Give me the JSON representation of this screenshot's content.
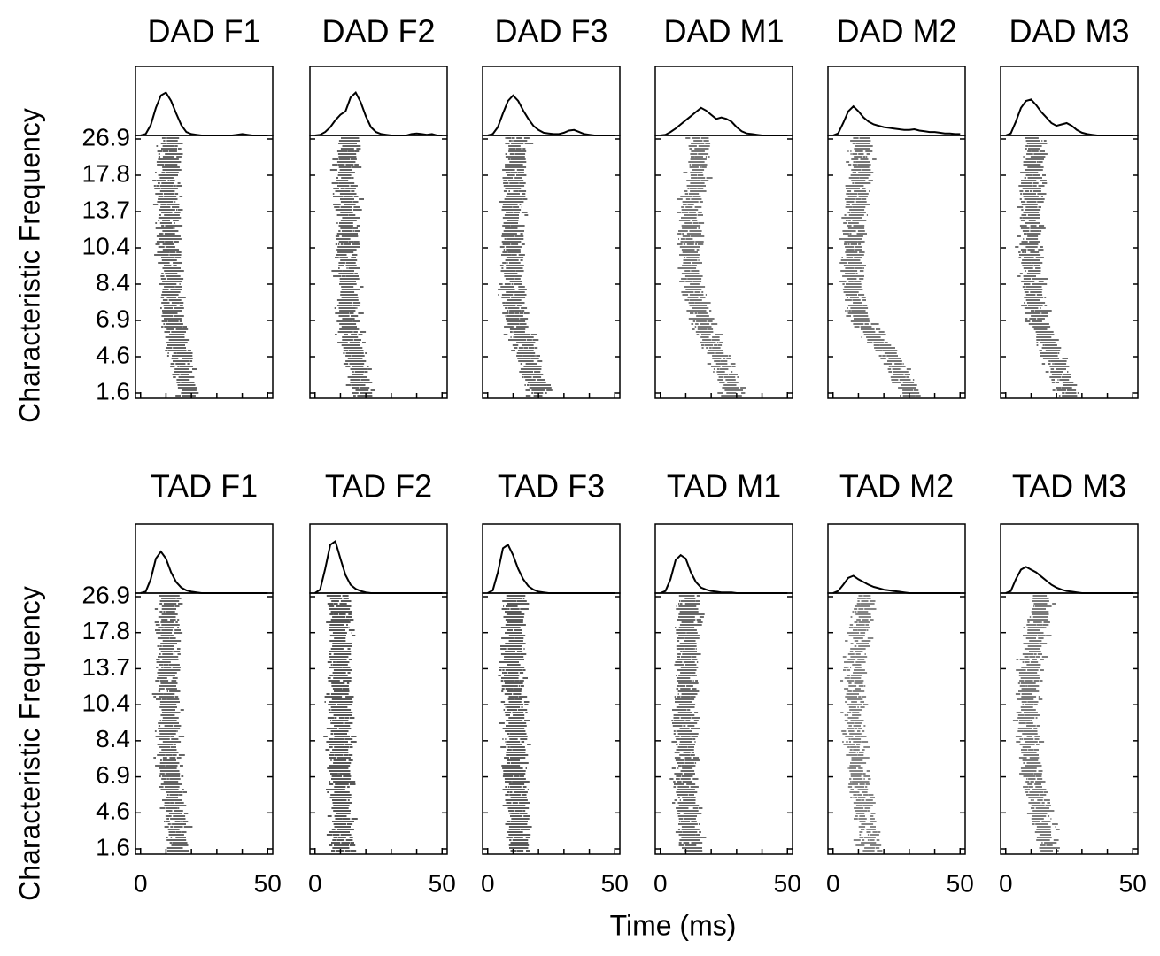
{
  "figure": {
    "ylabel": "Characteristic Frequency",
    "xlabel": "Time (ms)"
  },
  "chart_data": [
    {
      "type": "raster",
      "title": "DAD F1",
      "xlim": [
        -2,
        52
      ],
      "xticks": [
        0,
        50
      ],
      "yticks": [
        1.6,
        4.6,
        6.9,
        8.4,
        10.4,
        13.7,
        17.8,
        26.9
      ],
      "psth_ylim": [
        0,
        1
      ],
      "x": [
        0,
        2,
        4,
        6,
        8,
        10,
        12,
        14,
        16,
        18,
        20,
        22,
        24,
        26,
        28,
        30,
        32,
        34,
        36,
        38,
        40,
        42,
        44,
        46,
        48,
        50
      ],
      "psth": [
        0,
        0.02,
        0.15,
        0.4,
        0.58,
        0.62,
        0.5,
        0.32,
        0.15,
        0.05,
        0.02,
        0.01,
        0,
        0,
        0,
        0,
        0,
        0,
        0,
        0.01,
        0.02,
        0.01,
        0,
        0,
        0,
        0
      ],
      "latency": [
        18,
        15,
        12,
        11,
        10,
        10,
        10,
        11
      ]
    },
    {
      "type": "raster",
      "title": "DAD F2",
      "xlim": [
        -2,
        52
      ],
      "xticks": [
        0,
        50
      ],
      "yticks": [
        1.6,
        4.6,
        6.9,
        8.4,
        10.4,
        13.7,
        17.8,
        26.9
      ],
      "psth_ylim": [
        0,
        1
      ],
      "x": [
        0,
        2,
        4,
        6,
        8,
        10,
        12,
        14,
        16,
        18,
        20,
        22,
        24,
        26,
        28,
        30,
        32,
        34,
        36,
        38,
        40,
        42,
        44,
        46,
        48,
        50
      ],
      "psth": [
        0,
        0.01,
        0.05,
        0.12,
        0.22,
        0.3,
        0.35,
        0.55,
        0.62,
        0.48,
        0.28,
        0.12,
        0.05,
        0.02,
        0.01,
        0,
        0,
        0,
        0,
        0.02,
        0.03,
        0.02,
        0.01,
        0.02,
        0,
        0
      ],
      "latency": [
        18,
        15,
        12,
        12,
        12,
        12,
        11,
        13
      ]
    },
    {
      "type": "raster",
      "title": "DAD F3",
      "xlim": [
        -2,
        52
      ],
      "xticks": [
        0,
        50
      ],
      "yticks": [
        1.6,
        4.6,
        6.9,
        8.4,
        10.4,
        13.7,
        17.8,
        26.9
      ],
      "psth_ylim": [
        0,
        1
      ],
      "x": [
        0,
        2,
        4,
        6,
        8,
        10,
        12,
        14,
        16,
        18,
        20,
        22,
        24,
        26,
        28,
        30,
        32,
        34,
        36,
        38,
        40,
        42,
        44,
        46,
        48,
        50
      ],
      "psth": [
        0,
        0.02,
        0.12,
        0.32,
        0.5,
        0.58,
        0.5,
        0.36,
        0.24,
        0.14,
        0.08,
        0.04,
        0.03,
        0.02,
        0.02,
        0.04,
        0.07,
        0.08,
        0.05,
        0.02,
        0.01,
        0,
        0,
        0,
        0,
        0
      ],
      "latency": [
        19,
        15,
        10,
        9,
        9,
        9,
        10,
        11
      ]
    },
    {
      "type": "raster",
      "title": "DAD M1",
      "xlim": [
        -2,
        52
      ],
      "xticks": [
        0,
        50
      ],
      "yticks": [
        1.6,
        4.6,
        6.9,
        8.4,
        10.4,
        13.7,
        17.8,
        26.9
      ],
      "psth_ylim": [
        0,
        1
      ],
      "x": [
        0,
        2,
        4,
        6,
        8,
        10,
        12,
        14,
        16,
        18,
        20,
        22,
        24,
        26,
        28,
        30,
        32,
        34,
        36,
        38,
        40,
        42,
        44,
        46,
        48,
        50
      ],
      "psth": [
        0,
        0.01,
        0.05,
        0.1,
        0.16,
        0.22,
        0.28,
        0.34,
        0.4,
        0.36,
        0.3,
        0.24,
        0.26,
        0.24,
        0.2,
        0.12,
        0.06,
        0.03,
        0.02,
        0.01,
        0,
        0,
        0,
        0,
        0,
        0
      ],
      "latency": [
        28,
        22,
        16,
        12,
        11,
        11,
        14,
        15
      ]
    },
    {
      "type": "raster",
      "title": "DAD M2",
      "xlim": [
        -2,
        52
      ],
      "xticks": [
        0,
        50
      ],
      "yticks": [
        1.6,
        4.6,
        6.9,
        8.4,
        10.4,
        13.7,
        17.8,
        26.9
      ],
      "psth_ylim": [
        0,
        1
      ],
      "x": [
        0,
        2,
        4,
        6,
        8,
        10,
        12,
        14,
        16,
        18,
        20,
        22,
        24,
        26,
        28,
        30,
        32,
        34,
        36,
        38,
        40,
        42,
        44,
        46,
        48,
        50
      ],
      "psth": [
        0,
        0.03,
        0.18,
        0.35,
        0.42,
        0.35,
        0.26,
        0.2,
        0.16,
        0.14,
        0.12,
        0.11,
        0.1,
        0.09,
        0.08,
        0.08,
        0.09,
        0.07,
        0.06,
        0.05,
        0.05,
        0.04,
        0.03,
        0.03,
        0.02,
        0.02
      ],
      "latency": [
        30,
        22,
        10,
        7,
        7,
        8,
        10,
        10
      ]
    },
    {
      "type": "raster",
      "title": "DAD M3",
      "xlim": [
        -2,
        52
      ],
      "xticks": [
        0,
        50
      ],
      "yticks": [
        1.6,
        4.6,
        6.9,
        8.4,
        10.4,
        13.7,
        17.8,
        26.9
      ],
      "psth_ylim": [
        0,
        1
      ],
      "x": [
        0,
        2,
        4,
        6,
        8,
        10,
        12,
        14,
        16,
        18,
        20,
        22,
        24,
        26,
        28,
        30,
        32,
        34,
        36,
        38,
        40,
        42,
        44,
        46,
        48,
        50
      ],
      "psth": [
        0,
        0.03,
        0.2,
        0.4,
        0.5,
        0.52,
        0.44,
        0.34,
        0.26,
        0.18,
        0.14,
        0.16,
        0.18,
        0.14,
        0.08,
        0.04,
        0.02,
        0.01,
        0,
        0,
        0,
        0,
        0,
        0,
        0,
        0
      ],
      "latency": [
        24,
        18,
        12,
        10,
        9,
        9,
        10,
        11
      ]
    },
    {
      "type": "raster",
      "title": "TAD F1",
      "xlim": [
        -2,
        52
      ],
      "xticks": [
        0,
        50
      ],
      "yticks": [
        1.6,
        4.6,
        6.9,
        8.4,
        10.4,
        13.7,
        17.8,
        26.9
      ],
      "psth_ylim": [
        0,
        1
      ],
      "x": [
        0,
        2,
        4,
        6,
        8,
        10,
        12,
        14,
        16,
        18,
        20,
        22,
        24,
        26,
        28,
        30,
        32,
        34,
        36,
        38,
        40,
        42,
        44,
        46,
        48,
        50
      ],
      "psth": [
        0,
        0.02,
        0.2,
        0.5,
        0.6,
        0.5,
        0.3,
        0.16,
        0.08,
        0.04,
        0.02,
        0.01,
        0,
        0,
        0,
        0,
        0,
        0,
        0,
        0,
        0,
        0,
        0,
        0,
        0,
        0
      ],
      "latency": [
        14,
        13,
        11,
        10,
        10,
        10,
        10,
        11
      ]
    },
    {
      "type": "raster",
      "title": "TAD F2",
      "xlim": [
        -2,
        52
      ],
      "xticks": [
        0,
        50
      ],
      "yticks": [
        1.6,
        4.6,
        6.9,
        8.4,
        10.4,
        13.7,
        17.8,
        26.9
      ],
      "psth_ylim": [
        0,
        1
      ],
      "x": [
        0,
        2,
        4,
        6,
        8,
        10,
        12,
        14,
        16,
        18,
        20,
        22,
        24,
        26,
        28,
        30,
        32,
        34,
        36,
        38,
        40,
        42,
        44,
        46,
        48,
        50
      ],
      "psth": [
        0,
        0.05,
        0.35,
        0.7,
        0.75,
        0.5,
        0.26,
        0.12,
        0.06,
        0.03,
        0.01,
        0,
        0,
        0,
        0,
        0,
        0,
        0,
        0,
        0,
        0,
        0,
        0,
        0,
        0,
        0
      ],
      "latency": [
        10,
        10,
        9,
        9,
        9,
        9,
        9,
        9
      ]
    },
    {
      "type": "raster",
      "title": "TAD F3",
      "xlim": [
        -2,
        52
      ],
      "xticks": [
        0,
        50
      ],
      "yticks": [
        1.6,
        4.6,
        6.9,
        8.4,
        10.4,
        13.7,
        17.8,
        26.9
      ],
      "psth_ylim": [
        0,
        1
      ],
      "x": [
        0,
        2,
        4,
        6,
        8,
        10,
        12,
        14,
        16,
        18,
        20,
        22,
        24,
        26,
        28,
        30,
        32,
        34,
        36,
        38,
        40,
        42,
        44,
        46,
        48,
        50
      ],
      "psth": [
        0,
        0.04,
        0.3,
        0.65,
        0.7,
        0.55,
        0.35,
        0.2,
        0.1,
        0.05,
        0.02,
        0.01,
        0,
        0,
        0,
        0,
        0,
        0,
        0,
        0,
        0,
        0,
        0,
        0,
        0,
        0
      ],
      "latency": [
        12,
        11,
        10,
        10,
        10,
        9,
        10,
        10
      ]
    },
    {
      "type": "raster",
      "title": "TAD M1",
      "xlim": [
        -2,
        52
      ],
      "xticks": [
        0,
        50
      ],
      "yticks": [
        1.6,
        4.6,
        6.9,
        8.4,
        10.4,
        13.7,
        17.8,
        26.9
      ],
      "psth_ylim": [
        0,
        1
      ],
      "x": [
        0,
        2,
        4,
        6,
        8,
        10,
        12,
        14,
        16,
        18,
        20,
        22,
        24,
        26,
        28,
        30,
        32,
        34,
        36,
        38,
        40,
        42,
        44,
        46,
        48,
        50
      ],
      "psth": [
        0,
        0.03,
        0.2,
        0.48,
        0.55,
        0.5,
        0.3,
        0.16,
        0.08,
        0.05,
        0.03,
        0.02,
        0.01,
        0.01,
        0.01,
        0,
        0,
        0,
        0,
        0,
        0,
        0,
        0,
        0,
        0,
        0
      ],
      "latency": [
        12,
        10,
        9,
        9,
        9,
        10,
        10,
        11
      ]
    },
    {
      "type": "raster",
      "title": "TAD M2",
      "xlim": [
        -2,
        52
      ],
      "xticks": [
        0,
        50
      ],
      "yticks": [
        1.6,
        4.6,
        6.9,
        8.4,
        10.4,
        13.7,
        17.8,
        26.9
      ],
      "psth_ylim": [
        0,
        1
      ],
      "x": [
        0,
        2,
        4,
        6,
        8,
        10,
        12,
        14,
        16,
        18,
        20,
        22,
        24,
        26,
        28,
        30,
        32,
        34,
        36,
        38,
        40,
        42,
        44,
        46,
        48,
        50
      ],
      "psth": [
        0,
        0.03,
        0.12,
        0.22,
        0.25,
        0.2,
        0.16,
        0.12,
        0.09,
        0.07,
        0.05,
        0.04,
        0.03,
        0.02,
        0.01,
        0,
        0,
        0,
        0,
        0,
        0,
        0,
        0,
        0,
        0,
        0
      ],
      "latency": [
        14,
        12,
        9,
        8,
        8,
        8,
        10,
        12
      ]
    },
    {
      "type": "raster",
      "title": "TAD M3",
      "xlim": [
        -2,
        52
      ],
      "xticks": [
        0,
        50
      ],
      "yticks": [
        1.6,
        4.6,
        6.9,
        8.4,
        10.4,
        13.7,
        17.8,
        26.9
      ],
      "psth_ylim": [
        0,
        1
      ],
      "x": [
        0,
        2,
        4,
        6,
        8,
        10,
        12,
        14,
        16,
        18,
        20,
        22,
        24,
        26,
        28,
        30,
        32,
        34,
        36,
        38,
        40,
        42,
        44,
        46,
        48,
        50
      ],
      "psth": [
        0,
        0.03,
        0.2,
        0.34,
        0.38,
        0.34,
        0.3,
        0.24,
        0.18,
        0.12,
        0.08,
        0.05,
        0.03,
        0.02,
        0.01,
        0,
        0,
        0,
        0,
        0,
        0,
        0,
        0,
        0,
        0,
        0
      ],
      "latency": [
        16,
        13,
        10,
        8,
        8,
        9,
        11,
        13
      ]
    }
  ]
}
